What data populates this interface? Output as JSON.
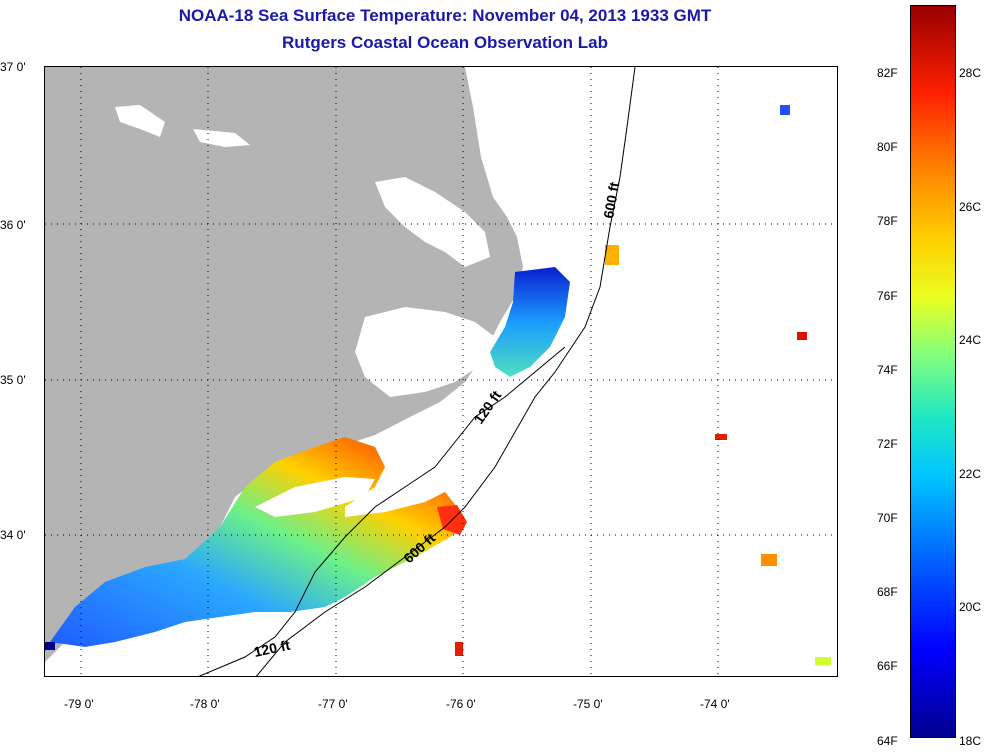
{
  "title": {
    "line1": "NOAA-18 Sea Surface Temperature:  November 04, 2013 1933 GMT",
    "line2": "Rutgers Coastal Ocean Observation Lab"
  },
  "map": {
    "lat_labels": [
      "37 0'",
      "36 0'",
      "35 0'",
      "34 0'"
    ],
    "lon_labels": [
      "-79 0'",
      "-78 0'",
      "-77 0'",
      "-76 0'",
      "-75 0'",
      "-74 0'"
    ],
    "contour_labels": [
      "600 ft",
      "120 ft",
      "600 ft",
      "120 ft"
    ],
    "colors": {
      "land": "#b4b4b4",
      "ocean_blank": "#ffffff",
      "border": "#000000"
    }
  },
  "colorbar": {
    "fahrenheit": [
      "82F",
      "80F",
      "78F",
      "76F",
      "74F",
      "72F",
      "70F",
      "68F",
      "66F",
      "64F"
    ],
    "celsius": [
      "28C",
      "26C",
      "24C",
      "22C",
      "20C",
      "18C"
    ]
  }
}
